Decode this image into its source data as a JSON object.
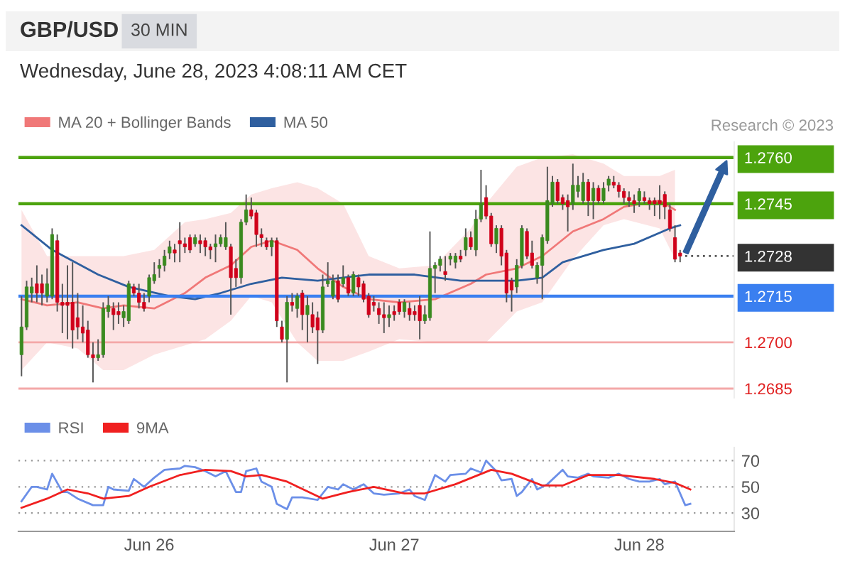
{
  "chart_data": [
    {
      "type": "candlestick",
      "title": "GBP/USD",
      "subtitle": "30 MIN",
      "x": [
        "2023-06-25T11:30",
        "2023-06-25T12:00",
        "2023-06-25T12:30",
        "2023-06-25T13:00",
        "2023-06-25T13:30",
        "2023-06-25T14:00",
        "2023-06-25T14:30",
        "2023-06-25T15:00",
        "2023-06-25T15:30",
        "2023-06-25T16:00",
        "2023-06-25T16:30",
        "2023-06-25T17:00",
        "2023-06-25T17:30",
        "2023-06-25T18:00",
        "2023-06-25T18:30",
        "2023-06-25T19:00",
        "2023-06-25T19:30",
        "2023-06-25T20:00",
        "2023-06-25T20:30",
        "2023-06-25T21:00",
        "2023-06-25T21:30",
        "2023-06-25T22:00",
        "2023-06-25T22:30",
        "2023-06-25T23:00",
        "2023-06-25T23:30",
        "2023-06-26T00:00",
        "2023-06-26T00:30",
        "2023-06-26T01:00",
        "2023-06-26T01:30",
        "2023-06-26T02:00",
        "2023-06-26T02:30",
        "2023-06-26T03:00",
        "2023-06-26T03:30",
        "2023-06-26T04:00",
        "2023-06-26T04:30",
        "2023-06-26T05:00",
        "2023-06-26T05:30",
        "2023-06-26T06:00",
        "2023-06-26T06:30",
        "2023-06-26T07:00",
        "2023-06-26T07:30",
        "2023-06-26T08:00",
        "2023-06-26T08:30",
        "2023-06-26T09:00",
        "2023-06-26T09:30",
        "2023-06-26T10:00",
        "2023-06-26T10:30",
        "2023-06-26T11:00",
        "2023-06-26T11:30",
        "2023-06-26T12:00",
        "2023-06-26T12:30",
        "2023-06-26T13:00",
        "2023-06-26T13:30",
        "2023-06-26T14:00",
        "2023-06-26T14:30",
        "2023-06-26T15:00",
        "2023-06-26T15:30",
        "2023-06-26T16:00",
        "2023-06-26T16:30",
        "2023-06-26T17:00",
        "2023-06-26T17:30",
        "2023-06-26T18:00",
        "2023-06-26T18:30",
        "2023-06-26T19:00",
        "2023-06-26T19:30",
        "2023-06-26T20:00",
        "2023-06-26T20:30",
        "2023-06-26T21:00",
        "2023-06-26T21:30",
        "2023-06-26T22:00",
        "2023-06-26T22:30",
        "2023-06-26T23:00",
        "2023-06-26T23:30",
        "2023-06-27T00:00",
        "2023-06-27T00:30",
        "2023-06-27T01:00",
        "2023-06-27T01:30",
        "2023-06-27T02:00",
        "2023-06-27T02:30",
        "2023-06-27T03:00",
        "2023-06-27T03:30",
        "2023-06-27T04:00",
        "2023-06-27T04:30",
        "2023-06-27T05:00",
        "2023-06-27T05:30",
        "2023-06-27T06:00",
        "2023-06-27T06:30",
        "2023-06-27T07:00",
        "2023-06-27T07:30",
        "2023-06-27T08:00",
        "2023-06-27T08:30",
        "2023-06-27T09:00",
        "2023-06-27T09:30",
        "2023-06-27T10:00",
        "2023-06-27T10:30",
        "2023-06-27T11:00",
        "2023-06-27T11:30",
        "2023-06-27T12:00",
        "2023-06-27T12:30",
        "2023-06-27T13:00",
        "2023-06-27T13:30",
        "2023-06-27T14:00",
        "2023-06-27T14:30",
        "2023-06-27T15:00",
        "2023-06-27T15:30",
        "2023-06-27T16:00",
        "2023-06-27T16:30",
        "2023-06-27T17:00",
        "2023-06-27T17:30",
        "2023-06-27T18:00",
        "2023-06-27T18:30",
        "2023-06-27T19:00",
        "2023-06-27T19:30",
        "2023-06-27T20:00",
        "2023-06-27T20:30",
        "2023-06-27T21:00",
        "2023-06-27T21:30",
        "2023-06-27T22:00",
        "2023-06-27T22:30",
        "2023-06-27T23:00",
        "2023-06-27T23:30",
        "2023-06-28T00:00",
        "2023-06-28T00:30",
        "2023-06-28T01:00",
        "2023-06-28T01:30",
        "2023-06-28T02:00",
        "2023-06-28T02:30",
        "2023-06-28T03:00",
        "2023-06-28T03:30",
        "2023-06-28T04:00"
      ],
      "ohlc": [
        [
          1.2696,
          1.2715,
          1.2689,
          1.2705
        ],
        [
          1.2705,
          1.272,
          1.2704,
          1.2718
        ],
        [
          1.2716,
          1.2721,
          1.2713,
          1.2718
        ],
        [
          1.2719,
          1.2725,
          1.2713,
          1.2716
        ],
        [
          1.2719,
          1.2722,
          1.2712,
          1.2716
        ],
        [
          1.2715,
          1.2724,
          1.2713,
          1.2719
        ],
        [
          1.2715,
          1.2737,
          1.2714,
          1.2735
        ],
        [
          1.2733,
          1.2735,
          1.271,
          1.2713
        ],
        [
          1.2713,
          1.2719,
          1.2703,
          1.2712
        ],
        [
          1.2713,
          1.2725,
          1.2701,
          1.2712
        ],
        [
          1.2713,
          1.2726,
          1.2698,
          1.2704
        ],
        [
          1.2708,
          1.2716,
          1.2701,
          1.2705
        ],
        [
          1.2705,
          1.2712,
          1.27,
          1.2703
        ],
        [
          1.2704,
          1.2707,
          1.2695,
          1.2696
        ],
        [
          1.2696,
          1.27,
          1.2687,
          1.2695
        ],
        [
          1.2695,
          1.2701,
          1.2694,
          1.2696
        ],
        [
          1.2696,
          1.2713,
          1.2695,
          1.2711
        ],
        [
          1.271,
          1.2715,
          1.2708,
          1.2712
        ],
        [
          1.2711,
          1.2713,
          1.2704,
          1.2709
        ],
        [
          1.271,
          1.2713,
          1.2706,
          1.2709
        ],
        [
          1.2708,
          1.2712,
          1.2705,
          1.271
        ],
        [
          1.2707,
          1.272,
          1.2706,
          1.2719
        ],
        [
          1.2718,
          1.2719,
          1.2715,
          1.2716
        ],
        [
          1.2716,
          1.2719,
          1.2711,
          1.2713
        ],
        [
          1.2713,
          1.2716,
          1.271,
          1.2711
        ],
        [
          1.2715,
          1.2722,
          1.2713,
          1.2721
        ],
        [
          1.272,
          1.2726,
          1.2719,
          1.2722
        ],
        [
          1.2724,
          1.2727,
          1.2721,
          1.2725
        ],
        [
          1.2725,
          1.273,
          1.2723,
          1.2728
        ],
        [
          1.2729,
          1.2733,
          1.2727,
          1.2731
        ],
        [
          1.273,
          1.2732,
          1.2726,
          1.2729
        ],
        [
          1.2733,
          1.2739,
          1.2726,
          1.2732
        ],
        [
          1.2732,
          1.2734,
          1.2729,
          1.2731
        ],
        [
          1.2734,
          1.2735,
          1.2729,
          1.273
        ],
        [
          1.2732,
          1.2735,
          1.2731,
          1.2734
        ],
        [
          1.2733,
          1.2735,
          1.2729,
          1.2732
        ],
        [
          1.2733,
          1.2734,
          1.2728,
          1.2731
        ],
        [
          1.2731,
          1.2732,
          1.2727,
          1.273
        ],
        [
          1.2731,
          1.2735,
          1.2726,
          1.2732
        ],
        [
          1.2732,
          1.2735,
          1.2731,
          1.2734
        ],
        [
          1.2731,
          1.2739,
          1.273,
          1.2734
        ],
        [
          1.2731,
          1.2732,
          1.2709,
          1.2721
        ],
        [
          1.2724,
          1.2727,
          1.2718,
          1.2721
        ],
        [
          1.2721,
          1.274,
          1.2719,
          1.2739
        ],
        [
          1.2739,
          1.2748,
          1.2738,
          1.2743
        ],
        [
          1.2743,
          1.2747,
          1.274,
          1.2741
        ],
        [
          1.2742,
          1.2743,
          1.2731,
          1.2735
        ],
        [
          1.2735,
          1.2737,
          1.2731,
          1.2734
        ],
        [
          1.2733,
          1.2734,
          1.273,
          1.2731
        ],
        [
          1.2731,
          1.2734,
          1.2728,
          1.2733
        ],
        [
          1.2733,
          1.2734,
          1.2705,
          1.2707
        ],
        [
          1.2705,
          1.2707,
          1.27,
          1.2701
        ],
        [
          1.2701,
          1.2715,
          1.2687,
          1.2713
        ],
        [
          1.2713,
          1.2716,
          1.271,
          1.2712
        ],
        [
          1.2711,
          1.2716,
          1.2708,
          1.2715
        ],
        [
          1.2716,
          1.2717,
          1.2704,
          1.2709
        ],
        [
          1.2709,
          1.2715,
          1.27,
          1.2712
        ],
        [
          1.2709,
          1.2713,
          1.2703,
          1.2705
        ],
        [
          1.2708,
          1.271,
          1.2693,
          1.2704
        ],
        [
          1.2704,
          1.2722,
          1.2703,
          1.2718
        ],
        [
          1.2719,
          1.2726,
          1.2718,
          1.272
        ],
        [
          1.2715,
          1.2722,
          1.2714,
          1.272
        ],
        [
          1.272,
          1.2722,
          1.2713,
          1.2714
        ],
        [
          1.2719,
          1.2725,
          1.2718,
          1.2721
        ],
        [
          1.2721,
          1.2722,
          1.2715,
          1.2716
        ],
        [
          1.2716,
          1.2723,
          1.2715,
          1.2722
        ],
        [
          1.2721,
          1.2722,
          1.2715,
          1.2718
        ],
        [
          1.2719,
          1.272,
          1.2713,
          1.2714
        ],
        [
          1.2715,
          1.2716,
          1.2708,
          1.2709
        ],
        [
          1.2713,
          1.2715,
          1.271,
          1.2712
        ],
        [
          1.2711,
          1.2713,
          1.2706,
          1.2709
        ],
        [
          1.2709,
          1.2713,
          1.2703,
          1.2708
        ],
        [
          1.2708,
          1.2712,
          1.2705,
          1.2709
        ],
        [
          1.271,
          1.2712,
          1.2707,
          1.2709
        ],
        [
          1.2713,
          1.2714,
          1.2709,
          1.271
        ],
        [
          1.271,
          1.2714,
          1.2708,
          1.2713
        ],
        [
          1.2711,
          1.2713,
          1.2707,
          1.2709
        ],
        [
          1.271,
          1.2712,
          1.2707,
          1.2709
        ],
        [
          1.2712,
          1.2715,
          1.2701,
          1.2707
        ],
        [
          1.2707,
          1.2712,
          1.2706,
          1.2709
        ],
        [
          1.2708,
          1.2736,
          1.2707,
          1.2724
        ],
        [
          1.2724,
          1.2726,
          1.2716,
          1.2725
        ],
        [
          1.2725,
          1.2728,
          1.2723,
          1.2727
        ],
        [
          1.2723,
          1.2728,
          1.272,
          1.2722
        ],
        [
          1.2727,
          1.2729,
          1.2725,
          1.2728
        ],
        [
          1.2726,
          1.2729,
          1.2724,
          1.2728
        ],
        [
          1.2728,
          1.273,
          1.2726,
          1.2727
        ],
        [
          1.273,
          1.2737,
          1.2728,
          1.2734
        ],
        [
          1.2734,
          1.2736,
          1.273,
          1.2731
        ],
        [
          1.273,
          1.2743,
          1.2728,
          1.274
        ],
        [
          1.274,
          1.2756,
          1.2739,
          1.2745
        ],
        [
          1.2747,
          1.2751,
          1.274,
          1.2741
        ],
        [
          1.2741,
          1.2742,
          1.2731,
          1.2732
        ],
        [
          1.2732,
          1.2738,
          1.2729,
          1.2737
        ],
        [
          1.2737,
          1.2738,
          1.2725,
          1.2728
        ],
        [
          1.2729,
          1.273,
          1.2713,
          1.2716
        ],
        [
          1.272,
          1.2721,
          1.271,
          1.2717
        ],
        [
          1.2718,
          1.2727,
          1.2716,
          1.2725
        ],
        [
          1.2725,
          1.2738,
          1.2724,
          1.2737
        ],
        [
          1.2736,
          1.2737,
          1.2727,
          1.2728
        ],
        [
          1.2729,
          1.2733,
          1.2724,
          1.2725
        ],
        [
          1.2721,
          1.2726,
          1.2719,
          1.2725
        ],
        [
          1.2725,
          1.2735,
          1.2714,
          1.2734
        ],
        [
          1.2733,
          1.2757,
          1.2732,
          1.2746
        ],
        [
          1.2745,
          1.2754,
          1.2744,
          1.2752
        ],
        [
          1.2752,
          1.2753,
          1.2745,
          1.2746
        ],
        [
          1.2747,
          1.2748,
          1.2743,
          1.2745
        ],
        [
          1.2746,
          1.2748,
          1.2736,
          1.2744
        ],
        [
          1.2745,
          1.2758,
          1.2743,
          1.2751
        ],
        [
          1.2749,
          1.2754,
          1.2747,
          1.2751
        ],
        [
          1.2746,
          1.2755,
          1.2745,
          1.2752
        ],
        [
          1.2752,
          1.2753,
          1.2741,
          1.2746
        ],
        [
          1.2746,
          1.2752,
          1.274,
          1.275
        ],
        [
          1.275,
          1.2751,
          1.2745,
          1.2746
        ],
        [
          1.2746,
          1.2752,
          1.2745,
          1.275
        ],
        [
          1.2751,
          1.2754,
          1.2749,
          1.2753
        ],
        [
          1.2752,
          1.2754,
          1.275,
          1.2751
        ],
        [
          1.2751,
          1.2752,
          1.2747,
          1.2749
        ],
        [
          1.2749,
          1.275,
          1.2745,
          1.2747
        ],
        [
          1.2747,
          1.2749,
          1.2744,
          1.2746
        ],
        [
          1.2746,
          1.2748,
          1.2742,
          1.2745
        ],
        [
          1.2746,
          1.275,
          1.2744,
          1.2749
        ],
        [
          1.2747,
          1.2749,
          1.2745,
          1.2746
        ],
        [
          1.2746,
          1.2747,
          1.2743,
          1.2745
        ],
        [
          1.2746,
          1.2747,
          1.2741,
          1.2745
        ],
        [
          1.2746,
          1.2751,
          1.274,
          1.2745
        ],
        [
          1.2748,
          1.2749,
          1.274,
          1.2744
        ],
        [
          1.2743,
          1.2745,
          1.2736,
          1.2737
        ],
        [
          1.2734,
          1.2738,
          1.2726,
          1.2727
        ],
        [
          1.2729,
          1.273,
          1.2726,
          1.2728
        ]
      ],
      "series": [
        {
          "type": "line",
          "name": "MA 20 + Bollinger Bands",
          "color": "#f07878",
          "x": [
            "2023-06-25T11:30",
            "2023-06-25T14:00",
            "2023-06-25T17:00",
            "2023-06-25T19:30",
            "2023-06-25T21:30",
            "2023-06-26T00:30",
            "2023-06-26T03:30",
            "2023-06-26T05:30",
            "2023-06-26T08:00",
            "2023-06-26T10:00",
            "2023-06-26T12:00",
            "2023-06-26T14:30",
            "2023-06-26T16:30",
            "2023-06-26T19:00",
            "2023-06-26T21:30",
            "2023-06-27T00:30",
            "2023-06-27T04:00",
            "2023-06-27T07:30",
            "2023-06-27T09:00",
            "2023-06-27T12:00",
            "2023-06-27T14:30",
            "2023-06-27T17:30",
            "2023-06-27T20:30",
            "2023-06-27T22:30",
            "2023-06-28T02:00",
            "2023-06-28T03:30"
          ],
          "values": [
            1.2714,
            1.2712,
            1.2713,
            1.2711,
            1.2712,
            1.2711,
            1.2716,
            1.2721,
            1.2725,
            1.2731,
            1.2733,
            1.273,
            1.2724,
            1.2718,
            1.2714,
            1.2713,
            1.2714,
            1.2719,
            1.2722,
            1.2724,
            1.2728,
            1.2736,
            1.274,
            1.2744,
            1.2746,
            1.2743
          ],
          "upper": [
            1.2743,
            1.2728,
            1.2728,
            1.2728,
            1.2728,
            1.273,
            1.2739,
            1.274,
            1.2742,
            1.2748,
            1.275,
            1.2752,
            1.275,
            1.2745,
            1.2728,
            1.2724,
            1.2725,
            1.2737,
            1.2745,
            1.2757,
            1.276,
            1.2761,
            1.2758,
            1.2754,
            1.2754,
            1.2756
          ],
          "lower": [
            1.2691,
            1.27,
            1.2698,
            1.2691,
            1.2691,
            1.2696,
            1.2699,
            1.2701,
            1.2707,
            1.2715,
            1.2713,
            1.27,
            1.2694,
            1.2694,
            1.2697,
            1.2701,
            1.27,
            1.27,
            1.27,
            1.271,
            1.2713,
            1.2727,
            1.2738,
            1.274,
            1.2737,
            1.2727
          ]
        },
        {
          "type": "line",
          "name": "MA 50",
          "color": "#2f5f9f",
          "x": [
            "2023-06-25T11:30",
            "2023-06-25T14:30",
            "2023-06-25T19:00",
            "2023-06-25T22:00",
            "2023-06-26T02:00",
            "2023-06-26T04:30",
            "2023-06-26T07:00",
            "2023-06-26T10:00",
            "2023-06-26T13:00",
            "2023-06-26T16:30",
            "2023-06-26T21:30",
            "2023-06-27T02:00",
            "2023-06-27T06:30",
            "2023-06-27T09:30",
            "2023-06-27T12:00",
            "2023-06-27T14:30",
            "2023-06-27T16:30",
            "2023-06-27T20:30",
            "2023-06-27T23:30",
            "2023-06-28T03:00",
            "2023-06-28T04:00"
          ],
          "values": [
            1.2738,
            1.273,
            1.2722,
            1.2718,
            1.2715,
            1.2714,
            1.2716,
            1.2719,
            1.2721,
            1.272,
            1.2722,
            1.2722,
            1.272,
            1.272,
            1.272,
            1.2721,
            1.2726,
            1.273,
            1.2732,
            1.2737,
            1.2738
          ]
        },
        {
          "type": "line",
          "color": "#555555",
          "line_style": "dotted",
          "x": [
            "2023-06-28T04:30",
            "2023-06-28T09:18"
          ],
          "values": [
            1.2728,
            1.2728
          ]
        }
      ],
      "xlim": [
        "2023-06-25T11:12",
        "2023-06-28T09:18"
      ],
      "ylim": [
        1.2682,
        1.2765
      ],
      "legend": "top left",
      "tick_labels": "y",
      "yticks": [
        {
          "value": 1.2685,
          "label": "1.2685"
        },
        {
          "value": 1.27,
          "label": "1.2700"
        },
        {
          "value": 1.2715,
          "label": "1.2715"
        },
        {
          "value": 1.2728,
          "label": "1.2728"
        },
        {
          "value": 1.2745,
          "label": "1.2745"
        },
        {
          "value": 1.276,
          "label": "1.2760"
        }
      ],
      "ref_lines": [
        {
          "axis": "y",
          "value": 1.276,
          "color": "#4ca30d"
        },
        {
          "axis": "y",
          "value": 1.2745,
          "color": "#4ca30d"
        },
        {
          "axis": "y",
          "value": 1.2715,
          "color": "#3a7ff0"
        },
        {
          "axis": "y",
          "value": 1.27,
          "color": "#f4a8a8"
        },
        {
          "axis": "y",
          "value": 1.2685,
          "color": "#f4a8a8"
        }
      ],
      "annotations": [
        "Wednesday, June 28, 2023 4:08:11 AM CET",
        "Research © 2023"
      ]
    },
    {
      "type": "line",
      "series": [
        {
          "name": "RSI",
          "color": "#6b8fe8",
          "x": [
            "2023-06-25T11:30",
            "2023-06-25T12:30",
            "2023-06-25T13:00",
            "2023-06-25T14:00",
            "2023-06-25T14:30",
            "2023-06-25T15:30",
            "2023-06-25T16:00",
            "2023-06-25T17:00",
            "2023-06-25T18:30",
            "2023-06-25T19:30",
            "2023-06-25T20:00",
            "2023-06-25T20:30",
            "2023-06-25T22:00",
            "2023-06-25T22:30",
            "2023-06-25T23:30",
            "2023-06-26T00:30",
            "2023-06-26T01:30",
            "2023-06-26T03:00",
            "2023-06-26T03:30",
            "2023-06-26T04:30",
            "2023-06-26T05:30",
            "2023-06-26T06:30",
            "2023-06-26T07:30",
            "2023-06-26T08:30",
            "2023-06-26T09:00",
            "2023-06-26T09:30",
            "2023-06-26T10:30",
            "2023-06-26T11:00",
            "2023-06-26T12:00",
            "2023-06-26T12:30",
            "2023-06-26T13:30",
            "2023-06-26T14:00",
            "2023-06-26T15:00",
            "2023-06-26T16:30",
            "2023-06-26T17:30",
            "2023-06-26T18:30",
            "2023-06-26T19:00",
            "2023-06-26T20:00",
            "2023-06-26T21:00",
            "2023-06-26T22:00",
            "2023-06-26T23:00",
            "2023-06-27T00:30",
            "2023-06-27T01:30",
            "2023-06-27T02:00",
            "2023-06-27T03:00",
            "2023-06-27T04:00",
            "2023-06-27T05:00",
            "2023-06-27T05:30",
            "2023-06-27T07:00",
            "2023-06-27T07:30",
            "2023-06-27T08:30",
            "2023-06-27T09:00",
            "2023-06-27T10:00",
            "2023-06-27T10:30",
            "2023-06-27T11:30",
            "2023-06-27T12:00",
            "2023-06-27T12:30",
            "2023-06-27T13:30",
            "2023-06-27T14:00",
            "2023-06-27T15:00",
            "2023-06-27T16:30",
            "2023-06-27T17:00",
            "2023-06-27T18:00",
            "2023-06-27T19:00",
            "2023-06-27T19:30",
            "2023-06-27T21:00",
            "2023-06-27T22:00",
            "2023-06-27T23:00",
            "2023-06-28T00:00",
            "2023-06-28T01:00",
            "2023-06-28T02:00",
            "2023-06-28T02:30",
            "2023-06-28T03:30",
            "2023-06-28T04:30",
            "2023-06-28T05:00"
          ],
          "values": [
            39,
            50,
            50,
            48,
            60,
            46,
            46,
            41,
            36,
            36,
            50,
            48,
            47,
            56,
            50,
            57,
            63,
            64,
            66,
            65,
            62,
            58,
            62,
            46,
            46,
            62,
            64,
            54,
            50,
            37,
            33,
            42,
            42,
            40,
            50,
            48,
            52,
            48,
            52,
            45,
            44,
            45,
            48,
            43,
            40,
            59,
            54,
            59,
            60,
            64,
            61,
            70,
            62,
            55,
            56,
            43,
            46,
            56,
            48,
            52,
            63,
            58,
            57,
            60,
            58,
            57,
            60,
            56,
            54,
            54,
            56,
            52,
            54,
            36,
            37
          ]
        },
        {
          "name": "9MA",
          "color": "#f02020",
          "x": [
            "2023-06-25T11:30",
            "2023-06-25T14:00",
            "2023-06-25T16:00",
            "2023-06-25T18:00",
            "2023-06-25T19:30",
            "2023-06-25T22:00",
            "2023-06-26T00:00",
            "2023-06-26T03:00",
            "2023-06-26T05:30",
            "2023-06-26T08:00",
            "2023-06-26T09:30",
            "2023-06-26T11:00",
            "2023-06-26T13:30",
            "2023-06-26T17:00",
            "2023-06-26T19:30",
            "2023-06-26T22:00",
            "2023-06-27T01:00",
            "2023-06-27T03:00",
            "2023-06-27T06:00",
            "2023-06-27T09:30",
            "2023-06-27T11:30",
            "2023-06-27T14:30",
            "2023-06-27T16:30",
            "2023-06-27T19:00",
            "2023-06-27T22:00",
            "2023-06-28T01:30",
            "2023-06-28T03:30",
            "2023-06-28T05:00"
          ],
          "values": [
            34,
            41,
            48,
            45,
            41,
            43,
            50,
            59,
            63,
            62,
            58,
            59,
            54,
            41,
            46,
            50,
            45,
            45,
            52,
            63,
            60,
            51,
            51,
            59,
            59,
            56,
            53,
            48
          ]
        }
      ],
      "xlim": [
        "2023-06-25T11:12",
        "2023-06-28T09:18"
      ],
      "xticks": [
        {
          "value": "2023-06-26",
          "label": "Jun 26"
        },
        {
          "value": "2023-06-27",
          "label": "Jun 27"
        },
        {
          "value": "2023-06-28",
          "label": "Jun 28"
        }
      ],
      "ylim": [
        16,
        80
      ],
      "yticks": [
        30,
        50,
        70
      ],
      "grid": "y",
      "legend": "top left"
    }
  ]
}
